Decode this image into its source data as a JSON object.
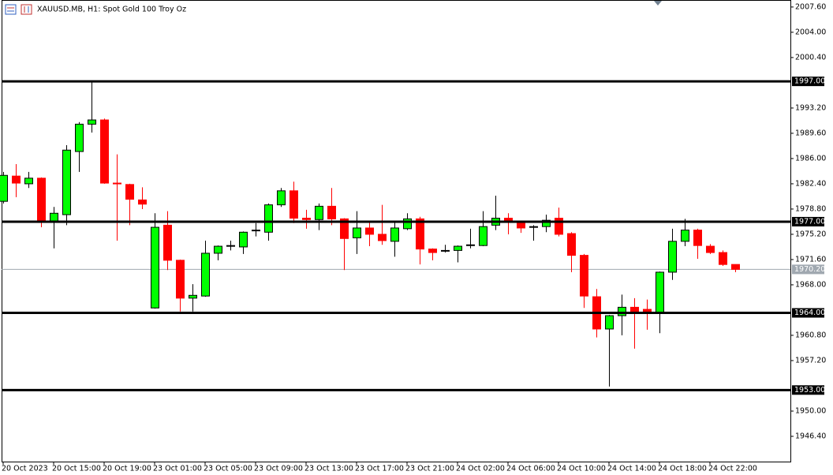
{
  "chart_data": {
    "type": "candlestick",
    "title": "XAUUSD.MB, H1:  Spot Gold 100 Troy Oz",
    "categories": [
      "20 Oct 2023",
      null,
      null,
      null,
      "20 Oct 15:00",
      null,
      null,
      null,
      "20 Oct 19:00",
      null,
      null,
      null,
      "23 Oct 01:00",
      null,
      null,
      null,
      "23 Oct 05:00",
      null,
      null,
      null,
      "23 Oct 09:00",
      null,
      null,
      null,
      "23 Oct 13:00",
      null,
      null,
      null,
      "23 Oct 17:00",
      null,
      null,
      null,
      "23 Oct 21:00",
      null,
      null,
      null,
      "24 Oct 02:00",
      null,
      null,
      null,
      "24 Oct 06:00",
      null,
      null,
      null,
      "24 Oct 10:00",
      null,
      null,
      null,
      "24 Oct 14:00",
      null,
      null,
      null,
      "24 Oct 18:00",
      null,
      null,
      null,
      "24 Oct 22:00",
      null,
      null
    ],
    "open": [
      1979.9,
      1983.5,
      1982.4,
      1983.2,
      1977.1,
      1978.0,
      1987.0,
      1990.9,
      1991.5,
      1982.5,
      1982.3,
      1980.1,
      1964.7,
      1976.5,
      1971.5,
      1966.1,
      1966.4,
      1972.5,
      1973.5,
      1973.4,
      1975.7,
      1975.5,
      1979.4,
      1981.4,
      1977.5,
      1977.3,
      1979.2,
      1977.4,
      1974.7,
      1976.1,
      1975.2,
      1974.2,
      1976.0,
      1977.4,
      1973.1,
      1972.8,
      1972.9,
      1973.6,
      1973.6,
      1976.5,
      1977.5,
      1976.9,
      1976.2,
      1976.3,
      1977.5,
      1975.3,
      1972.2,
      1966.3,
      1961.7,
      1963.6,
      1964.8,
      1964.5,
      1963.9,
      1969.8,
      1974.2,
      1975.8,
      1973.5,
      1972.6,
      1970.9
    ],
    "high": [
      1984.1,
      1985.2,
      1984.1,
      1983.3,
      1979.1,
      1987.9,
      1991.2,
      1996.9,
      1991.7,
      1986.6,
      1982.4,
      1981.9,
      1978.2,
      1978.5,
      1971.6,
      1968.1,
      1974.3,
      1973.6,
      1974.3,
      1975.6,
      1976.8,
      1979.6,
      1981.8,
      1982.7,
      1978.7,
      1979.6,
      1981.8,
      1977.5,
      1978.5,
      1977.1,
      1979.4,
      1977.1,
      1978.2,
      1977.7,
      1973.2,
      1973.7,
      1973.6,
      1976.0,
      1978.5,
      1980.7,
      1978.2,
      1977.1,
      1976.5,
      1978.0,
      1979.0,
      1975.5,
      1972.4,
      1967.4,
      1963.7,
      1966.6,
      1966.1,
      1965.9,
      1969.9,
      1976.0,
      1977.4,
      1976.0,
      1973.8,
      1972.9,
      1970.9
    ],
    "low": [
      1979.6,
      1980.5,
      1981.8,
      1976.2,
      1973.2,
      1976.5,
      1984.1,
      1989.7,
      1982.4,
      1974.3,
      1976.5,
      1978.8,
      1964.6,
      1970.1,
      1964.2,
      1964.2,
      1966.3,
      1971.5,
      1972.9,
      1972.4,
      1974.9,
      1974.3,
      1979.1,
      1976.8,
      1976.0,
      1975.8,
      1976.5,
      1970.1,
      1972.4,
      1973.5,
      1973.7,
      1972.0,
      1975.8,
      1970.9,
      1971.5,
      1972.6,
      1971.2,
      1973.2,
      1973.5,
      1975.8,
      1975.2,
      1975.4,
      1974.3,
      1975.5,
      1974.9,
      1969.8,
      1964.7,
      1960.5,
      1953.5,
      1960.8,
      1958.9,
      1961.6,
      1961.1,
      1968.7,
      1973.5,
      1971.7,
      1972.4,
      1970.7,
      1969.8
    ],
    "close": [
      1983.6,
      1982.5,
      1983.2,
      1976.9,
      1978.2,
      1987.2,
      1990.9,
      1991.5,
      1982.5,
      1982.4,
      1980.2,
      1979.5,
      1976.2,
      1971.5,
      1966.1,
      1966.5,
      1972.5,
      1973.5,
      1973.6,
      1975.5,
      1975.8,
      1979.4,
      1981.4,
      1977.5,
      1977.3,
      1979.2,
      1977.4,
      1974.6,
      1976.1,
      1975.2,
      1974.3,
      1976.1,
      1977.4,
      1973.1,
      1972.6,
      1972.9,
      1973.5,
      1973.7,
      1976.3,
      1977.5,
      1976.9,
      1976.1,
      1976.3,
      1977.2,
      1975.2,
      1972.2,
      1966.4,
      1961.7,
      1963.6,
      1964.8,
      1964.2,
      1963.9,
      1969.8,
      1974.2,
      1975.8,
      1973.6,
      1972.6,
      1970.9,
      1970.2
    ],
    "up_color": "#00ff00",
    "down_color": "#ff0000",
    "ylim": [
      1942.8,
      2008.6
    ],
    "yticks": [
      {
        "value": 2007.6,
        "label": "2007.60"
      },
      {
        "value": 2004,
        "label": "2004.00"
      },
      {
        "value": 2000.4,
        "label": "2000.40"
      },
      {
        "value": 1993.2,
        "label": "1993.20"
      },
      {
        "value": 1989.6,
        "label": "1989.60"
      },
      {
        "value": 1986,
        "label": "1986.00"
      },
      {
        "value": 1982.4,
        "label": "1982.40"
      },
      {
        "value": 1978.8,
        "label": "1978.80"
      },
      {
        "value": 1975.2,
        "label": "1975.20"
      },
      {
        "value": 1971.6,
        "label": "1971.60"
      },
      {
        "value": 1968,
        "label": "1968.00"
      },
      {
        "value": 1960.8,
        "label": "1960.80"
      },
      {
        "value": 1957.2,
        "label": "1957.20"
      },
      {
        "value": 1950,
        "label": "1950.00"
      },
      {
        "value": 1946.4,
        "label": "1946.40"
      }
    ],
    "levels": [
      {
        "value": 1997,
        "label": "1997.00"
      },
      {
        "value": 1977,
        "label": "1977.00"
      },
      {
        "value": 1964,
        "label": "1964.00"
      },
      {
        "value": 1953,
        "label": "1953.00"
      }
    ],
    "current_price": {
      "value": 1970.2,
      "label": "1970.20"
    }
  }
}
